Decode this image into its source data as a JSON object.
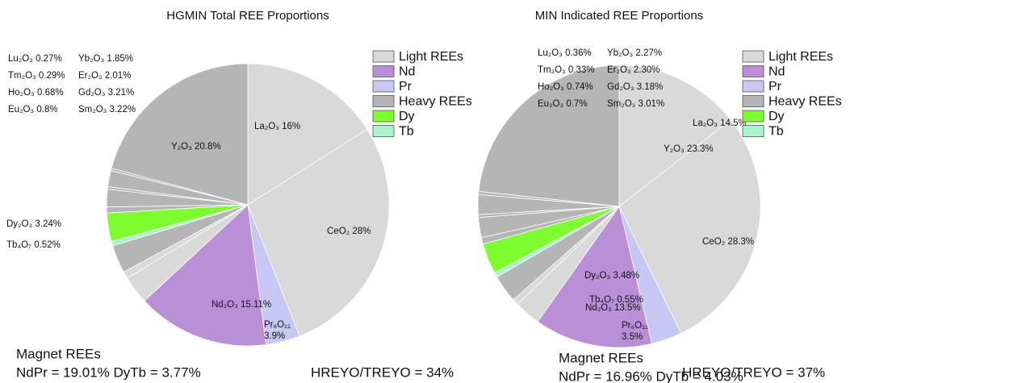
{
  "chart_data": [
    {
      "type": "pie",
      "title": "HGMIN Total REE Proportions",
      "categories": [
        "La₂O₃",
        "CeO₂",
        "Pr₆O₁₁",
        "Nd₂O₃",
        "Sm₂O₃",
        "Eu₂O₃",
        "Gd₂O₃",
        "Tb₄O₇",
        "Dy₂O₃",
        "Ho₂O₃",
        "Er₂O₃",
        "Tm₂O₃",
        "Yb₂O₃",
        "Lu₂O₃",
        "Y₂O₃"
      ],
      "values": [
        16,
        28,
        3.9,
        15.11,
        3.22,
        0.8,
        3.21,
        0.52,
        3.24,
        0.68,
        2.01,
        0.29,
        1.85,
        0.27,
        20.8
      ],
      "value_labels": [
        "16%",
        "28%",
        "3.9%",
        "15.11%",
        "3.22%",
        "0.8%",
        "3.21%",
        "0.52%",
        "3.24%",
        "0.68%",
        "2.01%",
        "0.29%",
        "1.85%",
        "0.27%",
        "20.8%"
      ],
      "colors": [
        "#d9d9d9",
        "#d9d9d9",
        "#c8c6f3",
        "#b98fd8",
        "#d9d9d9",
        "#d9d9d9",
        "#b5b5b5",
        "#a9f5c9",
        "#7dfc2f",
        "#b5b5b5",
        "#b5b5b5",
        "#b5b5b5",
        "#b5b5b5",
        "#b5b5b5",
        "#b5b5b5"
      ],
      "legend": [
        {
          "name": "Light REEs",
          "color": "#d9d9d9"
        },
        {
          "name": "Nd",
          "color": "#b98fd8"
        },
        {
          "name": "Pr",
          "color": "#c8c6f3"
        },
        {
          "name": "Heavy REEs",
          "color": "#b5b5b5"
        },
        {
          "name": "Dy",
          "color": "#7dfc2f"
        },
        {
          "name": "Tb",
          "color": "#a9f5c9"
        }
      ],
      "annotations": [
        "Magnet REEs",
        "NdPr = 19.01% DyTb = 3.77%",
        "HREYO/TREYO = 34%"
      ]
    },
    {
      "type": "pie",
      "title": "MIN Indicated REE Proportions",
      "categories": [
        "La₂O₃",
        "CeO₂",
        "Pr₆O₁₁",
        "Nd₂O₃",
        "Sm₂O₃",
        "Eu₂O₃",
        "Gd₂O₃",
        "Tb₄O₇",
        "Dy₂O₃",
        "Ho₂O₃",
        "Er₂O₃",
        "Tm₂O₃",
        "Yb₂O₃",
        "Lu₂O₃",
        "Y₂O₃"
      ],
      "values": [
        14.5,
        28.3,
        3.5,
        13.5,
        3.01,
        0.7,
        3.18,
        0.55,
        3.48,
        0.74,
        2.3,
        0.33,
        2.27,
        0.36,
        23.3
      ],
      "value_labels": [
        "14.5%",
        "28.3%",
        "3.5%",
        "13.5%",
        "3.01%",
        "0.7%",
        "3.18%",
        "0.55%",
        "3.48%",
        "0.74%",
        "2.30%",
        "0.33%",
        "2.27%",
        "0.36%",
        "23.3%"
      ],
      "colors": [
        "#d9d9d9",
        "#d9d9d9",
        "#c8c6f3",
        "#b98fd8",
        "#d9d9d9",
        "#d9d9d9",
        "#b5b5b5",
        "#a9f5c9",
        "#7dfc2f",
        "#b5b5b5",
        "#b5b5b5",
        "#b5b5b5",
        "#b5b5b5",
        "#b5b5b5",
        "#b5b5b5"
      ],
      "legend": [
        {
          "name": "Light REEs",
          "color": "#d9d9d9"
        },
        {
          "name": "Nd",
          "color": "#b98fd8"
        },
        {
          "name": "Pr",
          "color": "#c8c6f3"
        },
        {
          "name": "Heavy REEs",
          "color": "#b5b5b5"
        },
        {
          "name": "Dy",
          "color": "#7dfc2f"
        },
        {
          "name": "Tb",
          "color": "#a9f5c9"
        }
      ],
      "annotations": [
        "Magnet REEs",
        "NdPr = 16.96% DyTb = 4.03%",
        "HREYO/TREYO = 37%"
      ]
    }
  ]
}
